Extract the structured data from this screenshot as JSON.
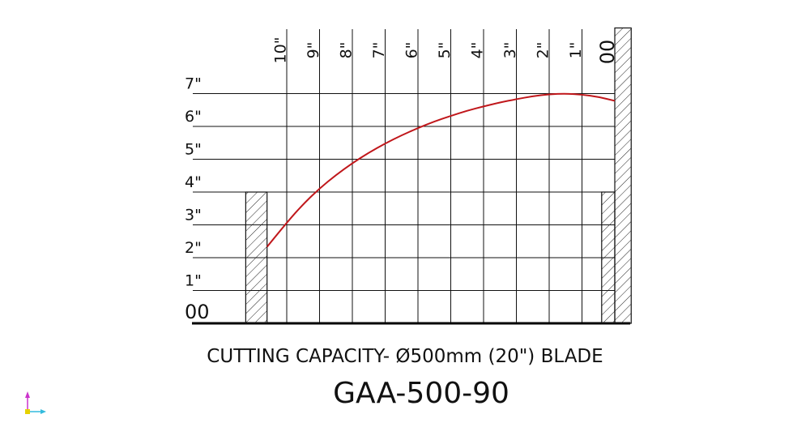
{
  "chart_data": {
    "type": "line",
    "x_direction": "reversed",
    "x_tick_labels": [
      "10\"",
      "9\"",
      "8\"",
      "7\"",
      "6\"",
      "5\"",
      "4\"",
      "3\"",
      "2\"",
      "1\"",
      "00"
    ],
    "x_ticks": [
      10,
      9,
      8,
      7,
      6,
      5,
      4,
      3,
      2,
      1,
      0
    ],
    "y_tick_labels": [
      "7\"",
      "6\"",
      "5\"",
      "4\"",
      "3\"",
      "2\"",
      "1\"",
      "00"
    ],
    "y_ticks": [
      7,
      6,
      5,
      4,
      3,
      2,
      1,
      0
    ],
    "xlim": [
      0,
      10
    ],
    "ylim": [
      0,
      7
    ],
    "grid": true,
    "series": [
      {
        "color": "#c0171b",
        "x": [
          10.6,
          10,
          9.5,
          9,
          8.5,
          8,
          7.5,
          7,
          6.5,
          6,
          5.5,
          5,
          4.5,
          4,
          3.5,
          3,
          2.5,
          2,
          1.5,
          1,
          0.5,
          0
        ],
        "y": [
          2.33,
          3.07,
          3.63,
          4.11,
          4.52,
          4.88,
          5.2,
          5.48,
          5.73,
          5.95,
          6.15,
          6.32,
          6.48,
          6.61,
          6.73,
          6.83,
          6.92,
          6.98,
          7.0,
          6.97,
          6.9,
          6.78
        ]
      }
    ],
    "vises": [
      {
        "x_range": [
          11.25,
          10.6
        ],
        "y_range": [
          0,
          4
        ]
      },
      {
        "x_range": [
          0.4,
          0
        ],
        "y_range": [
          0,
          4
        ]
      },
      {
        "x_range": [
          0,
          -0.5
        ],
        "y_range": [
          0,
          9
        ]
      }
    ],
    "caption": "CUTTING CAPACITY- Ø500mm (20\") BLADE",
    "model": "GAA-500-90"
  }
}
